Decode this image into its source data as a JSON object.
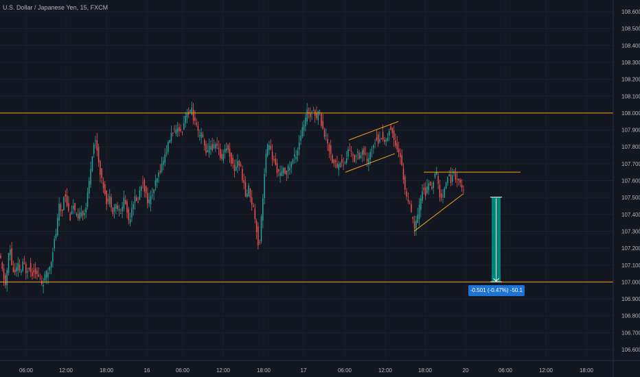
{
  "header": {
    "symbol_title": "U.S. Dollar / Japanese Yen, 15, FXCM"
  },
  "measure": {
    "label": "-0.501 (-0.47%) -50.1"
  },
  "colors": {
    "background": "#131722",
    "up": "#26a69a",
    "down": "#ef5350",
    "level": "#f7a21b",
    "axis_text": "#b2b5be",
    "measure_fill": "#009688",
    "measure_label": "#1e73d2"
  },
  "chart_data": {
    "type": "candlestick",
    "symbol": "U.S. Dollar / Japanese Yen",
    "interval": "15",
    "source": "FXCM",
    "ylim": [
      106.54,
      108.72
    ],
    "y_ticks": [
      "108.600",
      "108.500",
      "108.400",
      "108.300",
      "108.200",
      "108.100",
      "108.000",
      "107.900",
      "107.800",
      "107.700",
      "107.600",
      "107.500",
      "107.400",
      "107.300",
      "107.200",
      "107.100",
      "107.000",
      "106.900",
      "106.800",
      "106.700",
      "106.600"
    ],
    "x_ticks": [
      "06:00",
      "12:00",
      "18:00",
      "16",
      "06:00",
      "12:00",
      "18:00",
      "17",
      "06:00",
      "12:00",
      "18:00",
      "20",
      "06:00",
      "12:00",
      "18:00"
    ],
    "horizontal_levels": [
      108.0,
      107.0
    ],
    "path_points": [
      [
        0,
        107.15
      ],
      [
        4,
        107.05
      ],
      [
        8,
        106.98
      ],
      [
        11,
        107.1
      ],
      [
        14,
        107.22
      ],
      [
        18,
        107.07
      ],
      [
        22,
        107.05
      ],
      [
        26,
        107.1
      ],
      [
        30,
        107.05
      ],
      [
        34,
        107.12
      ],
      [
        38,
        107.06
      ],
      [
        42,
        107.1
      ],
      [
        46,
        107.04
      ],
      [
        50,
        107.08
      ],
      [
        54,
        107.04
      ],
      [
        58,
        107.02
      ],
      [
        62,
        106.98
      ],
      [
        66,
        107.04
      ],
      [
        70,
        107.06
      ],
      [
        74,
        107.12
      ],
      [
        78,
        107.22
      ],
      [
        82,
        107.3
      ],
      [
        86,
        107.45
      ],
      [
        90,
        107.4
      ],
      [
        94,
        107.55
      ],
      [
        98,
        107.45
      ],
      [
        102,
        107.38
      ],
      [
        106,
        107.46
      ],
      [
        110,
        107.4
      ],
      [
        114,
        107.36
      ],
      [
        118,
        107.43
      ],
      [
        122,
        107.4
      ],
      [
        126,
        107.46
      ],
      [
        130,
        107.6
      ],
      [
        134,
        107.75
      ],
      [
        138,
        107.85
      ],
      [
        141,
        107.8
      ],
      [
        144,
        107.7
      ],
      [
        148,
        107.6
      ],
      [
        152,
        107.55
      ],
      [
        156,
        107.46
      ],
      [
        160,
        107.5
      ],
      [
        164,
        107.42
      ],
      [
        168,
        107.46
      ],
      [
        172,
        107.43
      ],
      [
        176,
        107.4
      ],
      [
        180,
        107.5
      ],
      [
        184,
        107.44
      ],
      [
        188,
        107.35
      ],
      [
        192,
        107.45
      ],
      [
        196,
        107.5
      ],
      [
        200,
        107.46
      ],
      [
        204,
        107.55
      ],
      [
        208,
        107.6
      ],
      [
        212,
        107.52
      ],
      [
        216,
        107.47
      ],
      [
        220,
        107.5
      ],
      [
        224,
        107.55
      ],
      [
        228,
        107.6
      ],
      [
        232,
        107.65
      ],
      [
        236,
        107.7
      ],
      [
        240,
        107.75
      ],
      [
        244,
        107.8
      ],
      [
        248,
        107.86
      ],
      [
        252,
        107.9
      ],
      [
        256,
        107.88
      ],
      [
        260,
        107.92
      ],
      [
        264,
        107.88
      ],
      [
        268,
        107.95
      ],
      [
        272,
        108.02
      ],
      [
        276,
        107.98
      ],
      [
        279,
        108.04
      ],
      [
        282,
        107.96
      ],
      [
        286,
        107.92
      ],
      [
        290,
        107.85
      ],
      [
        294,
        107.88
      ],
      [
        298,
        107.8
      ],
      [
        302,
        107.76
      ],
      [
        306,
        107.82
      ],
      [
        310,
        107.78
      ],
      [
        314,
        107.83
      ],
      [
        318,
        107.78
      ],
      [
        322,
        107.72
      ],
      [
        326,
        107.78
      ],
      [
        330,
        107.8
      ],
      [
        334,
        107.76
      ],
      [
        338,
        107.7
      ],
      [
        342,
        107.66
      ],
      [
        346,
        107.72
      ],
      [
        350,
        107.68
      ],
      [
        354,
        107.6
      ],
      [
        358,
        107.5
      ],
      [
        362,
        107.56
      ],
      [
        366,
        107.48
      ],
      [
        370,
        107.42
      ],
      [
        374,
        107.3
      ],
      [
        377,
        107.18
      ],
      [
        380,
        107.35
      ],
      [
        384,
        107.58
      ],
      [
        388,
        107.78
      ],
      [
        392,
        107.82
      ],
      [
        396,
        107.74
      ],
      [
        400,
        107.7
      ],
      [
        404,
        107.66
      ],
      [
        408,
        107.63
      ],
      [
        412,
        107.66
      ],
      [
        416,
        107.65
      ],
      [
        420,
        107.67
      ],
      [
        424,
        107.7
      ],
      [
        428,
        107.74
      ],
      [
        432,
        107.76
      ],
      [
        436,
        107.84
      ],
      [
        440,
        107.9
      ],
      [
        444,
        107.94
      ],
      [
        448,
        108.02
      ],
      [
        452,
        107.98
      ],
      [
        456,
        108.04
      ],
      [
        460,
        107.96
      ],
      [
        464,
        108.02
      ],
      [
        468,
        107.94
      ],
      [
        472,
        107.88
      ],
      [
        476,
        107.84
      ],
      [
        480,
        107.78
      ],
      [
        484,
        107.72
      ],
      [
        488,
        107.7
      ],
      [
        492,
        107.68
      ],
      [
        496,
        107.72
      ],
      [
        500,
        107.69
      ],
      [
        504,
        107.72
      ],
      [
        508,
        107.8
      ],
      [
        512,
        107.76
      ],
      [
        516,
        107.72
      ],
      [
        520,
        107.78
      ],
      [
        524,
        107.74
      ],
      [
        528,
        107.78
      ],
      [
        532,
        107.74
      ],
      [
        536,
        107.7
      ],
      [
        540,
        107.78
      ],
      [
        544,
        107.82
      ],
      [
        548,
        107.86
      ],
      [
        552,
        107.82
      ],
      [
        556,
        107.88
      ],
      [
        560,
        107.82
      ],
      [
        564,
        107.86
      ],
      [
        568,
        107.92
      ],
      [
        572,
        107.87
      ],
      [
        576,
        107.82
      ],
      [
        580,
        107.78
      ],
      [
        584,
        107.72
      ],
      [
        588,
        107.6
      ],
      [
        592,
        107.5
      ],
      [
        596,
        107.46
      ],
      [
        600,
        107.38
      ],
      [
        604,
        107.32
      ],
      [
        608,
        107.38
      ],
      [
        612,
        107.48
      ],
      [
        616,
        107.56
      ],
      [
        620,
        107.52
      ],
      [
        624,
        107.58
      ],
      [
        628,
        107.55
      ],
      [
        632,
        107.62
      ],
      [
        636,
        107.64
      ],
      [
        640,
        107.52
      ],
      [
        644,
        107.48
      ],
      [
        648,
        107.58
      ],
      [
        652,
        107.64
      ],
      [
        656,
        107.6
      ],
      [
        660,
        107.65
      ],
      [
        664,
        107.62
      ],
      [
        668,
        107.6
      ],
      [
        672,
        107.56
      ],
      [
        676,
        107.52
      ]
    ],
    "drawings": [
      {
        "type": "trend-line",
        "points": [
          [
            508,
            107.84
          ],
          [
            580,
            107.95
          ]
        ]
      },
      {
        "type": "trend-line",
        "points": [
          [
            503,
            107.65
          ],
          [
            575,
            107.76
          ]
        ]
      },
      {
        "type": "trend-line",
        "points": [
          [
            617,
            107.65
          ],
          [
            758,
            107.65
          ]
        ]
      },
      {
        "type": "trend-line",
        "points": [
          [
            603,
            107.3
          ],
          [
            674,
            107.52
          ]
        ]
      }
    ],
    "measure_range": {
      "from": 107.502,
      "to": 107.001,
      "change": "-0.501",
      "percent": "-0.47%",
      "pips": "-50.1"
    }
  }
}
